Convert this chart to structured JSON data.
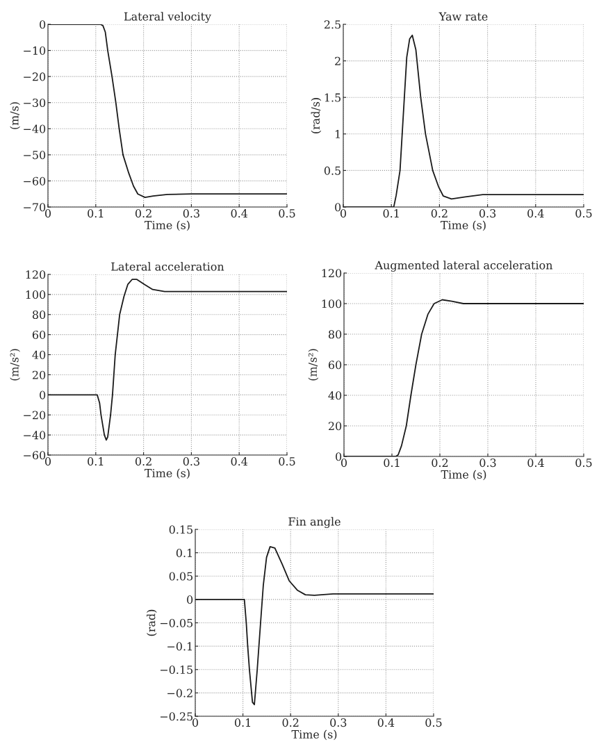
{
  "chart_data": [
    {
      "type": "line",
      "title": "Lateral velocity",
      "xlabel": "Time (s)",
      "ylabel": "(m/s)",
      "xlim": [
        0,
        0.5
      ],
      "xticks": [
        0,
        0.1,
        0.2,
        0.3,
        0.4,
        0.5
      ],
      "ylim": [
        -70,
        0
      ],
      "yticks": [
        -70,
        -60,
        -50,
        -40,
        -30,
        -20,
        -10,
        0
      ],
      "grid": true,
      "series": [
        {
          "color": "#1a1a1a",
          "x": [
            0,
            0.11,
            0.115,
            0.12,
            0.125,
            0.134,
            0.142,
            0.149,
            0.157,
            0.169,
            0.179,
            0.188,
            0.203,
            0.22,
            0.25,
            0.3,
            0.5
          ],
          "values": [
            0,
            0,
            -0.5,
            -3,
            -10,
            -20,
            -30,
            -40,
            -50,
            -57,
            -62,
            -65,
            -66.3,
            -65.8,
            -65.2,
            -65,
            -65
          ]
        }
      ]
    },
    {
      "type": "line",
      "title": "Yaw rate",
      "xlabel": "Time (s)",
      "ylabel": "(rad/s)",
      "xlim": [
        0,
        0.5
      ],
      "xticks": [
        0,
        0.1,
        0.2,
        0.3,
        0.4,
        0.5
      ],
      "ylim": [
        0,
        2.5
      ],
      "yticks": [
        0,
        0.5,
        1,
        1.5,
        2,
        2.5
      ],
      "grid": true,
      "series": [
        {
          "color": "#1a1a1a",
          "x": [
            0,
            0.105,
            0.11,
            0.118,
            0.127,
            0.132,
            0.138,
            0.1435,
            0.151,
            0.161,
            0.171,
            0.186,
            0.198,
            0.208,
            0.225,
            0.254,
            0.29,
            0.5
          ],
          "values": [
            0,
            0,
            0.16,
            0.5,
            1.5,
            2.05,
            2.3,
            2.35,
            2.15,
            1.5,
            1.0,
            0.5,
            0.28,
            0.15,
            0.11,
            0.14,
            0.17,
            0.17
          ]
        }
      ]
    },
    {
      "type": "line",
      "title": "Lateral acceleration",
      "xlabel": "Time (s)",
      "ylabel": "(m/s²)",
      "xlim": [
        0,
        0.5
      ],
      "xticks": [
        0,
        0.1,
        0.2,
        0.3,
        0.4,
        0.5
      ],
      "ylim": [
        -60,
        120
      ],
      "yticks": [
        -60,
        -40,
        -20,
        0,
        20,
        40,
        60,
        80,
        100,
        120
      ],
      "grid": true,
      "series": [
        {
          "color": "#1a1a1a",
          "x": [
            0,
            0.103,
            0.108,
            0.111,
            0.118,
            0.122,
            0.125,
            0.131,
            0.135,
            0.1407,
            0.15,
            0.159,
            0.167,
            0.176,
            0.186,
            0.202,
            0.219,
            0.244,
            0.5
          ],
          "values": [
            0,
            0,
            -8,
            -20,
            -40,
            -45,
            -42,
            -20,
            0,
            40,
            80,
            98,
            110,
            115,
            115,
            110,
            105,
            103,
            103
          ]
        }
      ]
    },
    {
      "type": "line",
      "title": "Augmented lateral acceleration",
      "xlabel": "Time (s)",
      "ylabel": "(m/s²)",
      "xlim": [
        0,
        0.5
      ],
      "xticks": [
        0,
        0.1,
        0.2,
        0.3,
        0.4,
        0.5
      ],
      "ylim": [
        0,
        120
      ],
      "yticks": [
        0,
        20,
        40,
        60,
        80,
        100,
        120
      ],
      "grid": true,
      "series": [
        {
          "color": "#1a1a1a",
          "x": [
            0,
            0.108,
            0.113,
            0.12,
            0.13,
            0.1396,
            0.15,
            0.162,
            0.175,
            0.188,
            0.205,
            0.225,
            0.249,
            0.5
          ],
          "values": [
            0,
            0,
            1,
            7,
            20,
            40,
            60,
            80,
            93,
            100,
            102.5,
            101.5,
            100,
            100
          ]
        }
      ]
    },
    {
      "type": "line",
      "title": "Fin angle",
      "xlabel": "Time (s)",
      "ylabel": "(rad)",
      "xlim": [
        0,
        0.5
      ],
      "xticks": [
        0,
        0.1,
        0.2,
        0.3,
        0.4,
        0.5
      ],
      "ylim": [
        -0.25,
        0.15
      ],
      "yticks": [
        -0.25,
        -0.2,
        -0.15,
        -0.1,
        -0.05,
        0,
        0.05,
        0.1,
        0.15
      ],
      "grid": true,
      "series": [
        {
          "color": "#1a1a1a",
          "x": [
            0,
            0.103,
            0.107,
            0.11,
            0.1136,
            0.12,
            0.124,
            0.13,
            0.137,
            0.1427,
            0.1495,
            0.157,
            0.167,
            0.1825,
            0.197,
            0.214,
            0.231,
            0.25,
            0.289,
            0.5
          ],
          "values": [
            0,
            0,
            -0.05,
            -0.1,
            -0.15,
            -0.22,
            -0.225,
            -0.15,
            -0.05,
            0.03,
            0.09,
            0.113,
            0.11,
            0.075,
            0.04,
            0.02,
            0.01,
            0.009,
            0.012,
            0.012
          ]
        }
      ]
    }
  ]
}
